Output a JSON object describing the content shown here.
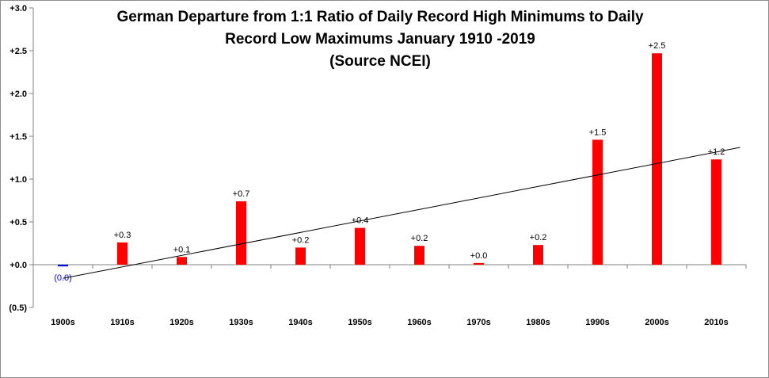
{
  "chart_data": {
    "type": "bar",
    "title_lines": [
      "German Departure from 1:1 Ratio of Daily Record High Minimums to Daily",
      "Record Low Maximums January 1910 -2019",
      "(Source NCEI)"
    ],
    "categories": [
      "1900s",
      "1910s",
      "1920s",
      "1930s",
      "1940s",
      "1950s",
      "1960s",
      "1970s",
      "1980s",
      "1990s",
      "2000s",
      "2010s"
    ],
    "values": [
      -0.02,
      0.26,
      0.09,
      0.74,
      0.2,
      0.43,
      0.22,
      0.02,
      0.23,
      1.46,
      2.47,
      1.23
    ],
    "data_labels": [
      "(0.0)",
      "+0.3",
      "+0.1",
      "+0.7",
      "+0.2",
      "+0.4",
      "+0.2",
      "+0.0",
      "+0.2",
      "+1.5",
      "+2.5",
      "+1.2"
    ],
    "ylim": [
      -0.5,
      3.0
    ],
    "y_ticks": [
      3.0,
      2.5,
      2.0,
      1.5,
      1.0,
      0.5,
      0.0,
      -0.5
    ],
    "y_tick_labels": [
      "+3.0",
      "+2.5",
      "+2.0",
      "+1.5",
      "+1.0",
      "+0.5",
      "+0.0",
      "(0.5)"
    ],
    "trendline": {
      "type": "linear",
      "start": [
        0,
        -0.16
      ],
      "end": [
        11.4,
        1.37
      ]
    },
    "colors": {
      "positive": "#ff0000",
      "negative": "#0000ff",
      "trendline": "#000000",
      "axis": "#808080"
    },
    "grid": false,
    "legend": "none"
  }
}
